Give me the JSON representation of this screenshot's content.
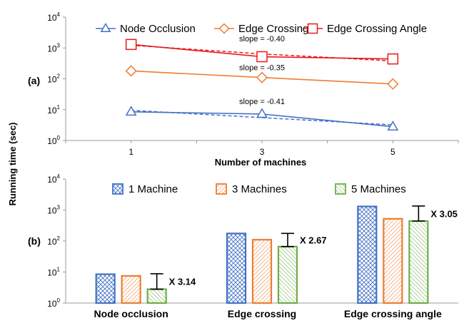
{
  "y_axis_title": "Running time (sec)",
  "chart_data": [
    {
      "type": "line",
      "panel_label": "(a)",
      "xlabel": "Number of machines",
      "ylabel": "Running time (sec)",
      "yscale": "log",
      "ylim": [
        1,
        10000
      ],
      "xlim": [
        0,
        6
      ],
      "x": [
        1,
        3,
        5
      ],
      "x_ticks": [
        "1",
        "3",
        "5"
      ],
      "y_ticks": [
        {
          "base": "10",
          "exp": "0"
        },
        {
          "base": "10",
          "exp": "1"
        },
        {
          "base": "10",
          "exp": "2"
        },
        {
          "base": "10",
          "exp": "3"
        },
        {
          "base": "10",
          "exp": "4"
        }
      ],
      "series": [
        {
          "name": "Node Occlusion",
          "marker": "triangle",
          "color": "#4472C4",
          "values": [
            8.5,
            7.2,
            2.8
          ],
          "trend": [
            9.5,
            5.5,
            3.2
          ],
          "slope_label": "slope = -0.41",
          "slope_x": 3,
          "slope_y": 15
        },
        {
          "name": "Edge Crossing",
          "marker": "diamond",
          "color": "#ED7D31",
          "values": [
            180,
            110,
            68
          ],
          "trend": null,
          "slope_label": "slope = -0.35",
          "slope_x": 3,
          "slope_y": 190
        },
        {
          "name": "Edge Crossing Angle",
          "marker": "square",
          "color": "#E8191F",
          "values": [
            1300,
            520,
            440
          ],
          "trend": [
            1220,
            640,
            380
          ],
          "slope_label": "slope = -0.40",
          "slope_x": 3,
          "slope_y": 1650
        }
      ]
    },
    {
      "type": "bar",
      "panel_label": "(b)",
      "yscale": "log",
      "ylim": [
        1,
        10000
      ],
      "categories": [
        "Node occlusion",
        "Edge crossing",
        "Edge crossing angle"
      ],
      "y_ticks": [
        {
          "base": "10",
          "exp": "0"
        },
        {
          "base": "10",
          "exp": "1"
        },
        {
          "base": "10",
          "exp": "2"
        },
        {
          "base": "10",
          "exp": "3"
        },
        {
          "base": "10",
          "exp": "4"
        }
      ],
      "series": [
        {
          "name": "1 Machine",
          "color": "#4472C4",
          "pattern": "crosshatch",
          "values": [
            8.5,
            175,
            1300
          ]
        },
        {
          "name": "3 Machines",
          "color": "#ED7D31",
          "pattern": "diagonal",
          "values": [
            7.5,
            110,
            520
          ]
        },
        {
          "name": "5 Machines",
          "color": "#70AD47",
          "pattern": "diagonal",
          "values": [
            2.8,
            66,
            440
          ]
        }
      ],
      "speedups": [
        {
          "label": "X 3.14",
          "low": 2.8,
          "high": 8.8
        },
        {
          "label": "X 2.67",
          "low": 66,
          "high": 176
        },
        {
          "label": "X 3.05",
          "low": 440,
          "high": 1340
        }
      ]
    }
  ]
}
